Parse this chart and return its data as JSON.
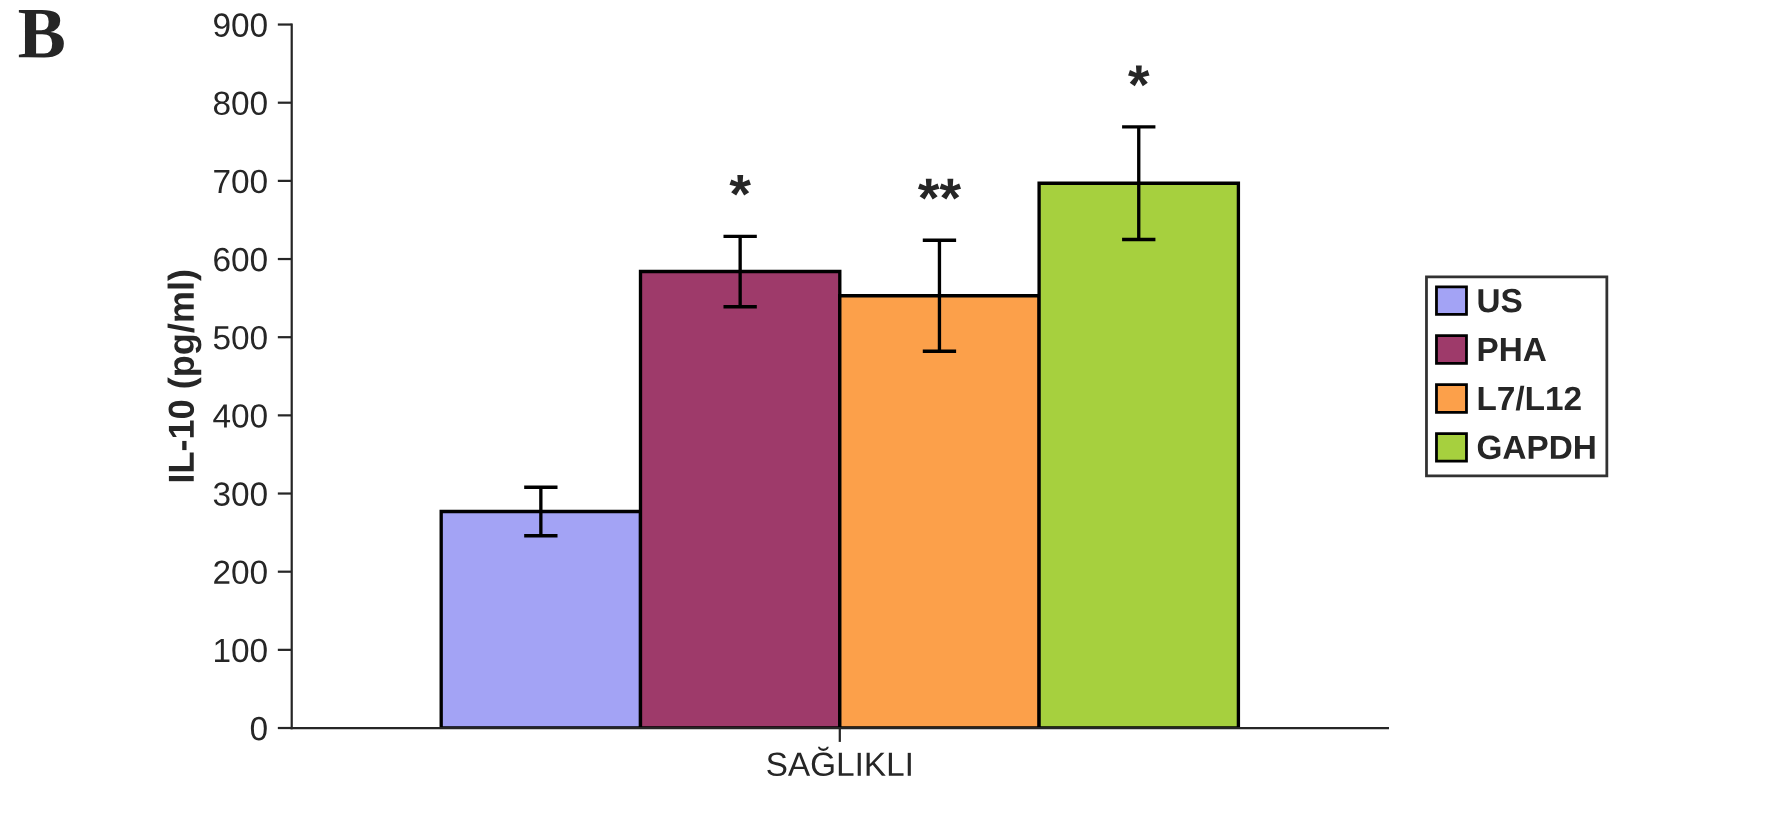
{
  "chart_data": {
    "type": "bar",
    "ylabel": "IL-10 (pg/ml)",
    "categories": [
      "SAĞLIKLI"
    ],
    "series": [
      {
        "name": "US",
        "color": "#a3a3f5",
        "values": [
          277
        ],
        "errors": [
          31
        ]
      },
      {
        "name": "PHA",
        "color": "#9e3a6a",
        "values": [
          584
        ],
        "errors": [
          45
        ]
      },
      {
        "name": "L7/L12",
        "color": "#fca04a",
        "values": [
          553
        ],
        "errors": [
          71
        ]
      },
      {
        "name": "GAPDH",
        "color": "#a6d03e",
        "values": [
          697
        ],
        "errors": [
          72
        ]
      }
    ],
    "ylim": [
      0,
      900
    ],
    "yticks": [
      0,
      100,
      200,
      300,
      400,
      500,
      600,
      700,
      800,
      900
    ],
    "grid": false,
    "legend": "right",
    "annotations": [
      "B",
      "*",
      "**",
      "*"
    ]
  }
}
